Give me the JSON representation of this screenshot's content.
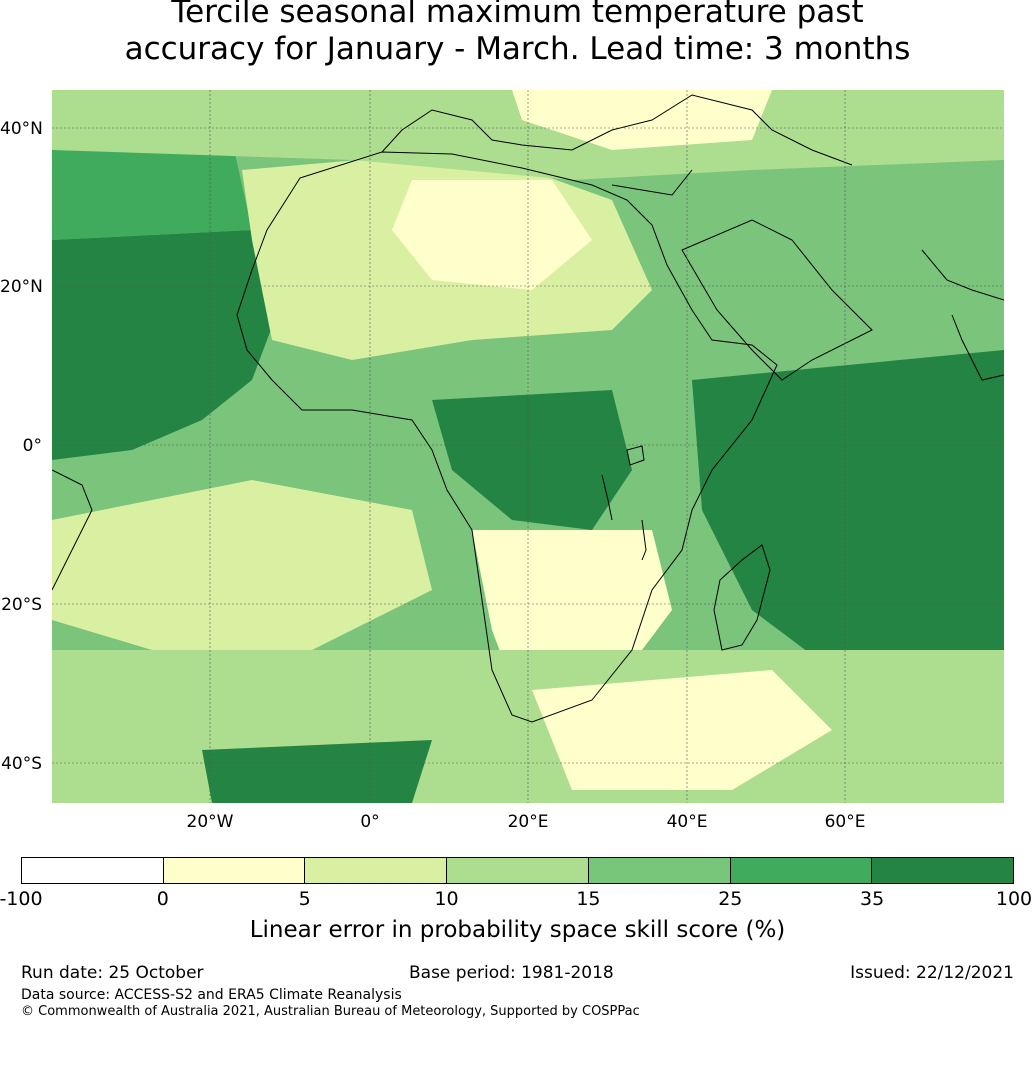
{
  "title": {
    "line1": "Tercile seasonal maximum temperature past",
    "line2": "accuracy for January - March. Lead time: 3 months"
  },
  "map": {
    "lat_labels": [
      "40°N",
      "20°N",
      "0°",
      "20°S",
      "40°S"
    ],
    "lon_labels": [
      "20°W",
      "0°",
      "20°E",
      "40°E",
      "60°E"
    ],
    "colors": {
      "ocean_base": "#7ac47b",
      "coastline": "#000000",
      "gridline": "#555555"
    }
  },
  "colorbar": {
    "ticks": [
      "-100",
      "0",
      "5",
      "10",
      "15",
      "25",
      "35",
      "100"
    ],
    "colors": [
      "#ffffff",
      "#ffffcc",
      "#d9f0a3",
      "#addd8e",
      "#78c679",
      "#41ab5d",
      "#238443"
    ],
    "label": "Linear error in probability space skill score (%)"
  },
  "footer": {
    "run_date": "Run date: 25 October",
    "base_period": "Base period: 1981-2018",
    "issued": "Issued: 22/12/2021",
    "data_source": "Data source: ACCESS-S2 and ERA5 Climate Reanalysis",
    "copyright": "© Commonwealth of Australia 2021, Australian Bureau of Meteorology, Supported by COSPPac"
  }
}
